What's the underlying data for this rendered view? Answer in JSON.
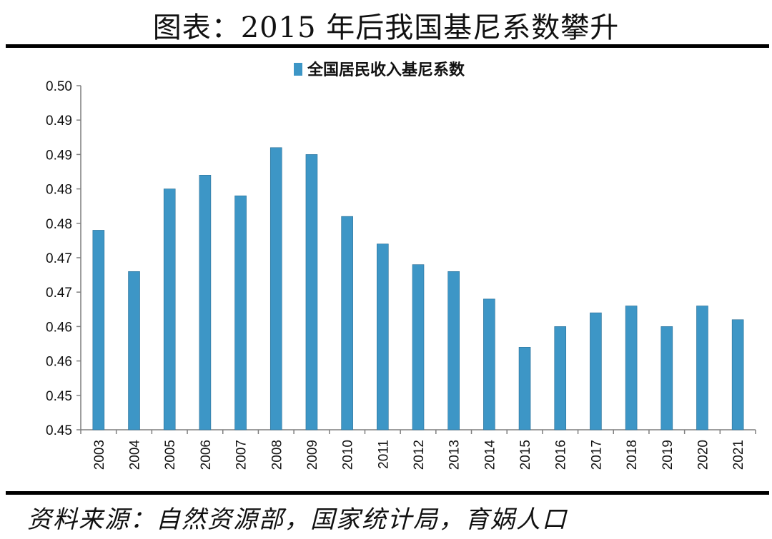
{
  "header": {
    "title": "图表：2015 年后我国基尼系数攀升"
  },
  "footer": {
    "source": "资料来源：自然资源部，国家统计局，育娲人口"
  },
  "colors": {
    "bar": "#3d96c6",
    "bar_edge": "#2a6f96",
    "axis": "#7f7f7f"
  },
  "chart_data": {
    "type": "bar",
    "title": "图表：2015 年后我国基尼系数攀升",
    "legend": {
      "label": "全国居民收入基尼系数",
      "position": "top-center"
    },
    "categories": [
      "2003",
      "2004",
      "2005",
      "2006",
      "2007",
      "2008",
      "2009",
      "2010",
      "2011",
      "2012",
      "2013",
      "2014",
      "2015",
      "2016",
      "2017",
      "2018",
      "2019",
      "2020",
      "2021"
    ],
    "series": [
      {
        "name": "全国居民收入基尼系数",
        "values": [
          0.479,
          0.473,
          0.485,
          0.487,
          0.484,
          0.491,
          0.49,
          0.481,
          0.477,
          0.474,
          0.473,
          0.469,
          0.462,
          0.465,
          0.467,
          0.468,
          0.465,
          0.468,
          0.466
        ]
      }
    ],
    "ylim": [
      0.45,
      0.5
    ],
    "yticks": [
      0.45,
      0.455,
      0.46,
      0.465,
      0.47,
      0.475,
      0.48,
      0.485,
      0.49,
      0.495,
      0.5
    ],
    "ytick_labels": [
      "0.45",
      "0.45",
      "0.46",
      "0.46",
      "0.47",
      "0.47",
      "0.48",
      "0.48",
      "0.49",
      "0.49",
      "0.50"
    ],
    "xlabel": "",
    "ylabel": "",
    "grid": false
  }
}
